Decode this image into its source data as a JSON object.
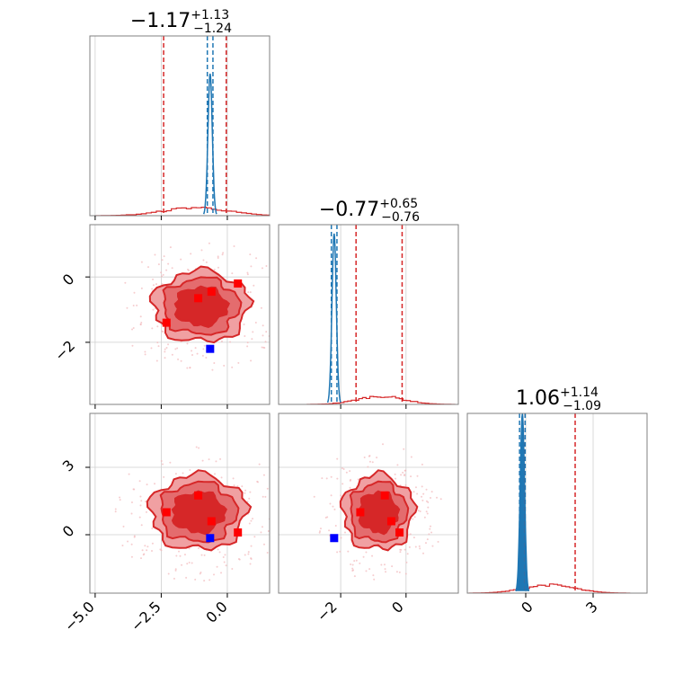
{
  "colors": {
    "posterior": "#d62728",
    "posterior_fill_outer": "#f0a0a2",
    "posterior_fill_mid": "#e46c6e",
    "posterior_fill_inner": "#d62728",
    "reference": "#1f77b4",
    "marker_red": "#ff0000",
    "marker_blue": "#0000ff",
    "grid": "#cfcfcf",
    "frame": "#808080"
  },
  "params": [
    {
      "title_main": "−1.17",
      "title_sup": "+1.13",
      "title_sub": "−1.24",
      "median": -1.17,
      "q_lo": -2.41,
      "q_hi": -0.04,
      "range": [
        -5.2,
        1.6
      ]
    },
    {
      "title_main": "−0.77",
      "title_sup": "+0.65",
      "title_sub": "−0.76",
      "median": -0.77,
      "q_lo": -1.53,
      "q_hi": -0.12,
      "range": [
        -3.9,
        1.6
      ]
    },
    {
      "title_main": "1.06",
      "title_sup": "+1.14",
      "title_sub": "−1.09",
      "median": 1.06,
      "q_lo": -0.03,
      "q_hi": 2.2,
      "range": [
        -2.6,
        5.4
      ]
    }
  ],
  "x_tick_labels": {
    "p0": [
      "−5.0",
      "−2.5",
      "0.0"
    ],
    "p1": [
      "−2",
      "0"
    ],
    "p2": [
      "0",
      "3"
    ]
  },
  "y_tick_labels": {
    "row1": [
      "0",
      "−2"
    ],
    "row2": [
      "3",
      "0"
    ]
  },
  "chart_data": {
    "type": "corner",
    "parameters": 3,
    "posterior_summaries": [
      {
        "median": -1.17,
        "plus": 1.13,
        "minus": 1.24
      },
      {
        "median": -0.77,
        "plus": 0.65,
        "minus": 0.76
      },
      {
        "median": 1.06,
        "plus": 1.14,
        "minus": 1.09
      }
    ],
    "reference_values": [
      -0.65,
      -2.2,
      -0.15
    ],
    "red_markers": [
      [
        -2.3,
        -1.4,
        1.0
      ],
      [
        -1.1,
        -0.65,
        1.75
      ],
      [
        -0.6,
        -0.45,
        0.6
      ],
      [
        0.4,
        -0.2,
        0.1
      ]
    ],
    "blue_marker": [
      -0.65,
      -2.2,
      -0.15
    ],
    "contour_centers": [
      {
        "pair": [
          0,
          1
        ],
        "cx": -1.0,
        "cy": -0.9,
        "sx": 1.25,
        "sy": 0.75
      },
      {
        "pair": [
          0,
          2
        ],
        "cx": -1.1,
        "cy": 1.0,
        "sx": 1.25,
        "sy": 1.15
      },
      {
        "pair": [
          1,
          2
        ],
        "cx": -0.85,
        "cy": 1.0,
        "sx": 0.75,
        "sy": 1.15
      }
    ],
    "grid": true
  }
}
